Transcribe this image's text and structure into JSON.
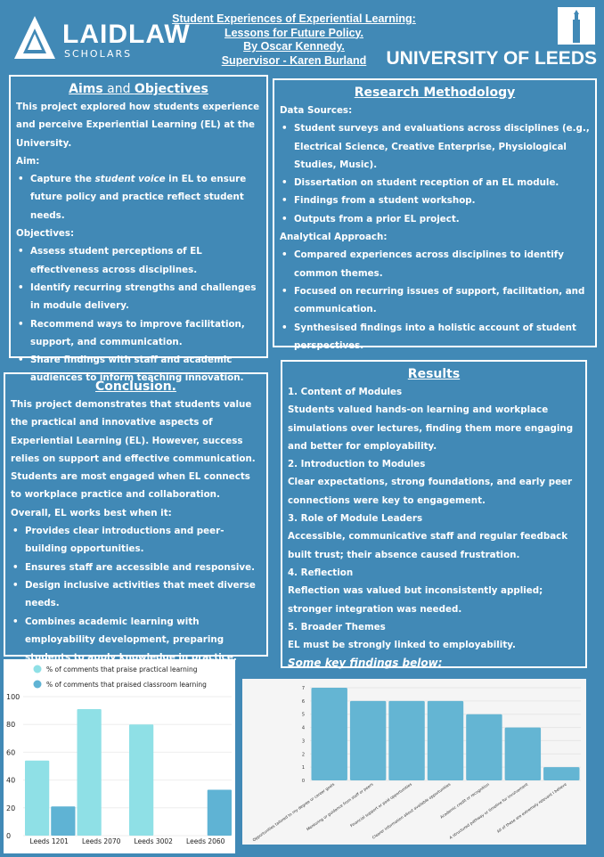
{
  "header": {
    "logo_left": "LAIDLAW",
    "logo_left_sub": "SCHOLARS",
    "logo_right": "UNIVERSITY OF LEEDS",
    "title_lines": [
      "Student Experiences of Experiential Learning:",
      "Lessons for Future Policy.",
      "By Oscar Kennedy.",
      "Supervisor - Karen Burland"
    ]
  },
  "aims": {
    "title_a": "Aims",
    "title_and": " and ",
    "title_b": "Objectives",
    "intro": "This project explored how students experience and perceive Experiential Learning (EL) at the University.",
    "aim_label": "Aim:",
    "aim_pre": "Capture the ",
    "aim_em": "student voice",
    "aim_post": " in EL to ensure future policy and practice reflect student needs.",
    "objectives_label": "Objectives:",
    "objectives": [
      "Assess student perceptions of EL effectiveness across disciplines.",
      "Identify recurring strengths and challenges in module delivery.",
      "Recommend ways to improve facilitation, support, and communication.",
      "Share findings with staff and academic audiences to inform teaching innovation."
    ]
  },
  "methodology": {
    "title": "Research Methodology",
    "sources_label": "Data Sources:",
    "sources": [
      "Student surveys and evaluations across disciplines (e.g., Electrical Science, Creative Enterprise, Physiological Studies, Music).",
      "Dissertation on student reception of an EL module.",
      "Findings from a student workshop.",
      "Outputs from a prior EL project."
    ],
    "approach_label": "Analytical Approach:",
    "approach": [
      "Compared experiences across disciplines to identify common themes.",
      "Focused on recurring issues of support, facilitation, and communication.",
      "Synthesised findings into a holistic account of student perspectives."
    ]
  },
  "conclusion": {
    "title": "Conclusion.",
    "intro": "This project demonstrates that students value the practical and innovative aspects of Experiential Learning (EL). However, success relies on support and effective communication. Students are most engaged when EL connects to workplace practice and collaboration.",
    "lead": "Overall, EL works best when it:",
    "points": [
      "Provides clear introductions and peer-building opportunities.",
      "Ensures staff are accessible and responsive.",
      "Design inclusive activities that meet diverse needs.",
      "Combines academic learning with employability development, preparing students to apply knowledge in practice."
    ]
  },
  "results": {
    "title": "Results",
    "items": [
      {
        "head": "1. Content of Modules",
        "text": "Students valued hands-on learning and workplace simulations over lectures, finding them more engaging and better for employability."
      },
      {
        "head": "2. Introduction to Modules",
        "text": "Clear expectations, strong foundations, and early peer connections were key to engagement."
      },
      {
        "head": "3. Role of Module Leaders",
        "text": "Accessible, communicative staff and regular feedback built trust; their absence caused frustration."
      },
      {
        "head": "4. Reflection",
        "text": "Reflection was valued but inconsistently applied; stronger integration was needed."
      },
      {
        "head": "5. Broader Themes",
        "text": "EL must be strongly linked to employability."
      }
    ],
    "footer": "Some key findings below:"
  },
  "colors": {
    "background": "#4189b6",
    "series_practical": "#8fe0e6",
    "series_classroom": "#5fb3d4",
    "bar2": "#64b5d3"
  },
  "chart_data": [
    {
      "type": "bar",
      "categories": [
        "Leeds 1201",
        "Leeds 2070",
        "Leeds 3002",
        "Leeds 2060"
      ],
      "series": [
        {
          "name": "% of comments that praise practical learning",
          "values": [
            54,
            91,
            80,
            0
          ]
        },
        {
          "name": "% of comments that praised classroom learning",
          "values": [
            21,
            0,
            0,
            33
          ]
        }
      ],
      "ylim": [
        0,
        100
      ],
      "yticks": [
        0,
        20,
        40,
        60,
        80,
        100
      ],
      "grid": true,
      "legend": "top-left"
    },
    {
      "type": "bar",
      "categories": [
        "Opportunities tailored to my degree or career goals",
        "Mentoring or guidance from staff or peers",
        "Financial support or paid opportunities",
        "Clearer information about available opportunities",
        "Academic credit or recognition",
        "A structured pathway or timeline for involvement",
        "All of these are extremely relevant I believe"
      ],
      "values": [
        7,
        6,
        6,
        6,
        5,
        4,
        1
      ],
      "ylim": [
        0,
        7
      ],
      "yticks": [
        0,
        1,
        2,
        3,
        4,
        5,
        6,
        7
      ],
      "grid": true
    }
  ]
}
